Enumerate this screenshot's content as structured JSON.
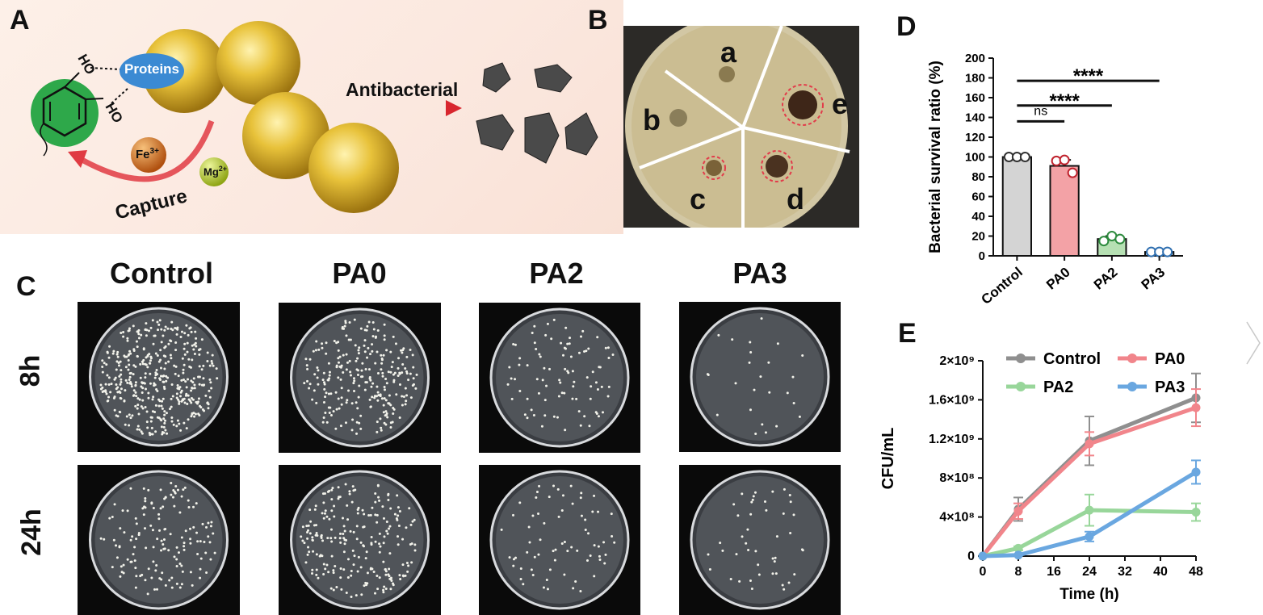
{
  "panels": {
    "A": {
      "letter": "A",
      "proteins_label": "Proteins",
      "fe_label": "Fe",
      "fe_charge": "3+",
      "mg_label": "Mg",
      "mg_charge": "2+",
      "capture_label": "Capture",
      "antibacterial_label": "Antibacterial",
      "ho_label_1": "HO",
      "ho_label_2": "HO"
    },
    "B": {
      "letter": "B",
      "zones": [
        "a",
        "b",
        "c",
        "d",
        "e"
      ]
    },
    "C": {
      "letter": "C",
      "columns": [
        "Control",
        "PA0",
        "PA2",
        "PA3"
      ],
      "rows": [
        "8h",
        "24h"
      ]
    },
    "D": {
      "letter": "D"
    },
    "E": {
      "letter": "E"
    }
  },
  "chart_data": [
    {
      "type": "bar",
      "panel": "D",
      "ylabel": "Bacterial survival ratio (%)",
      "categories": [
        "Control",
        "PA0",
        "PA2",
        "PA3"
      ],
      "values": [
        100,
        91,
        17,
        4
      ],
      "errors": [
        0,
        6,
        3,
        1
      ],
      "replicates": [
        [
          100,
          100,
          100
        ],
        [
          96,
          97,
          84
        ],
        [
          15,
          20,
          17
        ],
        [
          4,
          4,
          4
        ]
      ],
      "colors": [
        "#d4d4d4",
        "#f3a2a6",
        "#b6e0b3",
        "#a9c9ea"
      ],
      "ylim": [
        0,
        200
      ],
      "yticks": [
        0,
        20,
        40,
        60,
        80,
        100,
        120,
        140,
        160,
        180,
        200
      ],
      "significance": [
        {
          "from": "Control",
          "to": "PA0",
          "label": "ns"
        },
        {
          "from": "Control",
          "to": "PA2",
          "label": "****"
        },
        {
          "from": "Control",
          "to": "PA3",
          "label": "****"
        }
      ]
    },
    {
      "type": "line",
      "panel": "E",
      "xlabel": "Time (h)",
      "ylabel": "CFU/mL",
      "x": [
        0,
        8,
        24,
        48
      ],
      "xticks": [
        0,
        8,
        16,
        24,
        32,
        40,
        48
      ],
      "xlim": [
        0,
        48
      ],
      "ylim": [
        0,
        2000000000
      ],
      "yticks": [
        {
          "value": 0,
          "label": "0"
        },
        {
          "value": 400000000,
          "label": "4×10⁸"
        },
        {
          "value": 800000000,
          "label": "8×10⁸"
        },
        {
          "value": 1200000000,
          "label": "1.2×10⁹"
        },
        {
          "value": 1600000000,
          "label": "1.6×10⁹"
        },
        {
          "value": 2000000000,
          "label": "2×10⁹"
        }
      ],
      "series": [
        {
          "name": "Control",
          "color": "#8f8f8f",
          "values": [
            0,
            480000000,
            1180000000,
            1620000000
          ],
          "errors": [
            0,
            120000000,
            250000000,
            250000000
          ]
        },
        {
          "name": "PA0",
          "color": "#f1858b",
          "values": [
            0,
            460000000,
            1150000000,
            1520000000
          ],
          "errors": [
            0,
            80000000,
            120000000,
            190000000
          ]
        },
        {
          "name": "PA2",
          "color": "#98d69a",
          "values": [
            0,
            80000000,
            470000000,
            450000000
          ],
          "errors": [
            0,
            20000000,
            160000000,
            90000000
          ]
        },
        {
          "name": "PA3",
          "color": "#6aa7e0",
          "values": [
            0,
            10000000,
            200000000,
            860000000
          ],
          "errors": [
            0,
            5000000,
            50000000,
            120000000
          ]
        }
      ],
      "legend": "top"
    }
  ]
}
